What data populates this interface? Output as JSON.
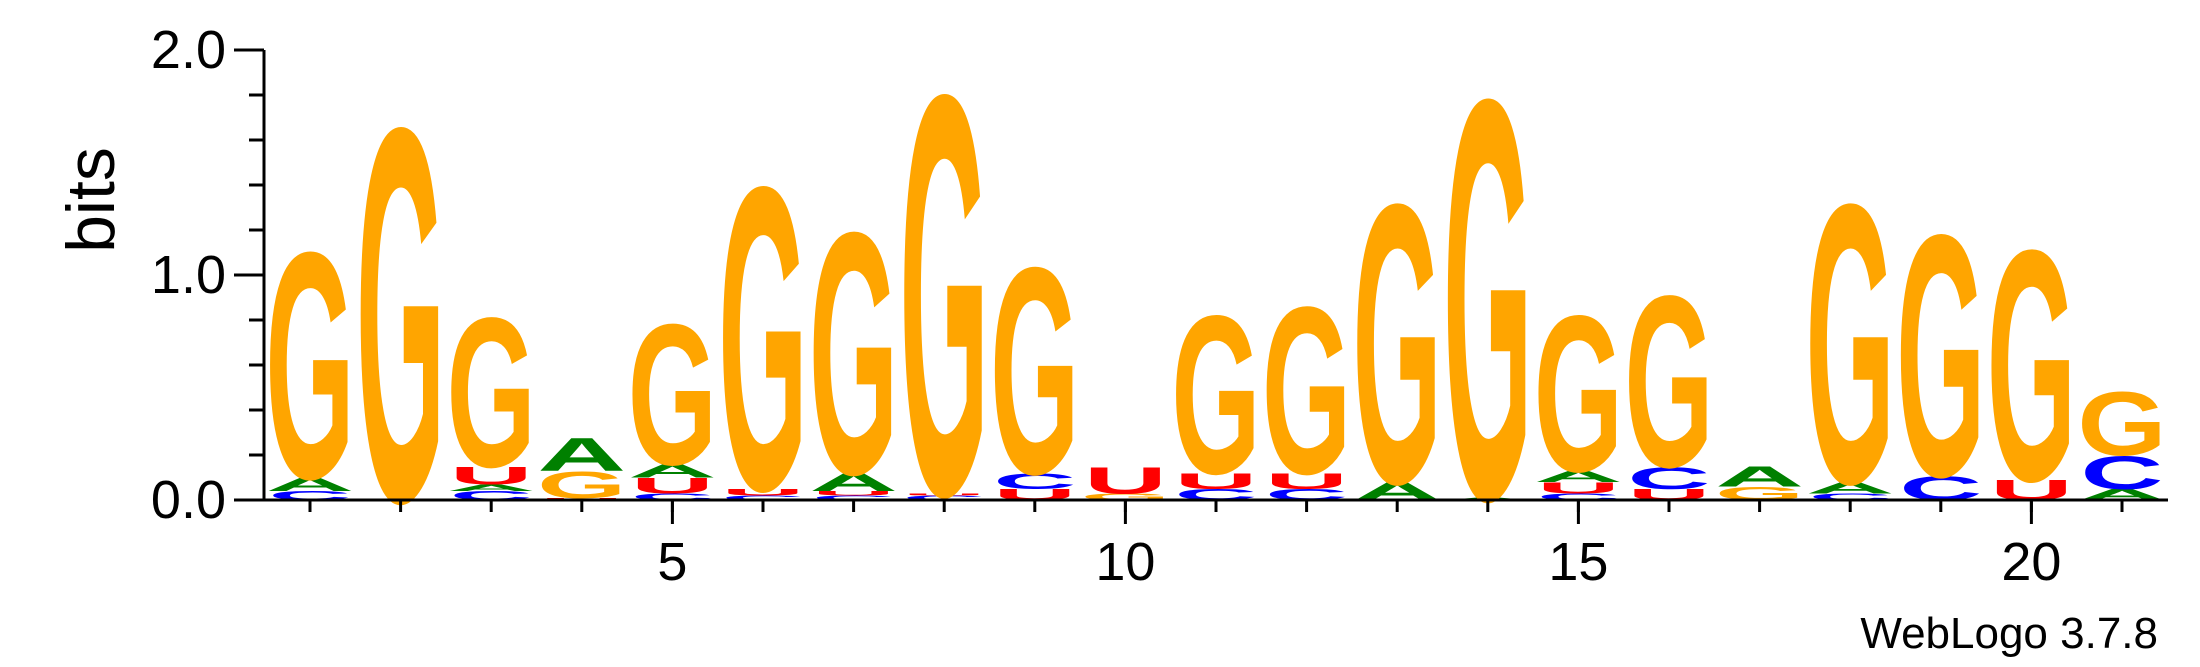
{
  "chart_data": {
    "type": "sequence-logo",
    "ylabel": "bits",
    "ylim": [
      0,
      2
    ],
    "y_ticks": [
      {
        "value": 0,
        "label": "0.0"
      },
      {
        "value": 1,
        "label": "1.0"
      },
      {
        "value": 2,
        "label": "2.0"
      }
    ],
    "x_range": [
      1,
      21
    ],
    "x_ticks": [
      {
        "value": 5,
        "label": "5"
      },
      {
        "value": 10,
        "label": "10"
      },
      {
        "value": 15,
        "label": "15"
      },
      {
        "value": 20,
        "label": "20"
      }
    ],
    "credit": "WebLogo 3.7.8",
    "colors": {
      "G": "#FFA500",
      "A": "#008000",
      "C": "#0000FF",
      "U": "#FF0000"
    },
    "positions": [
      {
        "pos": 1,
        "stack": [
          [
            "C",
            0.04
          ],
          [
            "A",
            0.06
          ],
          [
            "G",
            1.03
          ]
        ]
      },
      {
        "pos": 2,
        "stack": [
          [
            "G",
            1.7
          ]
        ]
      },
      {
        "pos": 3,
        "stack": [
          [
            "C",
            0.04
          ],
          [
            "A",
            0.03
          ],
          [
            "U",
            0.08
          ],
          [
            "G",
            0.68
          ]
        ]
      },
      {
        "pos": 4,
        "stack": [
          [
            "U",
            0.01
          ],
          [
            "G",
            0.12
          ],
          [
            "A",
            0.15
          ]
        ]
      },
      {
        "pos": 5,
        "stack": [
          [
            "C",
            0.03
          ],
          [
            "U",
            0.07
          ],
          [
            "A",
            0.06
          ],
          [
            "G",
            0.64
          ]
        ]
      },
      {
        "pos": 6,
        "stack": [
          [
            "C",
            0.02
          ],
          [
            "U",
            0.03
          ],
          [
            "G",
            1.38
          ]
        ]
      },
      {
        "pos": 7,
        "stack": [
          [
            "C",
            0.02
          ],
          [
            "U",
            0.02
          ],
          [
            "A",
            0.08
          ],
          [
            "G",
            1.1
          ]
        ]
      },
      {
        "pos": 8,
        "stack": [
          [
            "C",
            0.02
          ],
          [
            "U",
            0.01
          ],
          [
            "G",
            1.82
          ]
        ]
      },
      {
        "pos": 9,
        "stack": [
          [
            "U",
            0.05
          ],
          [
            "C",
            0.07
          ],
          [
            "G",
            0.94
          ]
        ]
      },
      {
        "pos": 10,
        "stack": [
          [
            "G",
            0.03
          ],
          [
            "U",
            0.12
          ]
        ]
      },
      {
        "pos": 11,
        "stack": [
          [
            "C",
            0.05
          ],
          [
            "U",
            0.07
          ],
          [
            "G",
            0.72
          ]
        ]
      },
      {
        "pos": 12,
        "stack": [
          [
            "C",
            0.05
          ],
          [
            "U",
            0.07
          ],
          [
            "G",
            0.76
          ]
        ]
      },
      {
        "pos": 13,
        "stack": [
          [
            "A",
            0.08
          ],
          [
            "G",
            1.27
          ]
        ]
      },
      {
        "pos": 14,
        "stack": [
          [
            "A",
            0.01
          ],
          [
            "G",
            1.82
          ]
        ]
      },
      {
        "pos": 15,
        "stack": [
          [
            "C",
            0.03
          ],
          [
            "U",
            0.05
          ],
          [
            "A",
            0.05
          ],
          [
            "G",
            0.71
          ]
        ]
      },
      {
        "pos": 16,
        "stack": [
          [
            "U",
            0.05
          ],
          [
            "C",
            0.1
          ],
          [
            "G",
            0.78
          ]
        ]
      },
      {
        "pos": 17,
        "stack": [
          [
            "G",
            0.06
          ],
          [
            "A",
            0.09
          ]
        ]
      },
      {
        "pos": 18,
        "stack": [
          [
            "C",
            0.03
          ],
          [
            "A",
            0.05
          ],
          [
            "G",
            1.27
          ]
        ]
      },
      {
        "pos": 19,
        "stack": [
          [
            "C",
            0.11
          ],
          [
            "G",
            1.1
          ]
        ]
      },
      {
        "pos": 20,
        "stack": [
          [
            "U",
            0.09
          ],
          [
            "G",
            1.05
          ]
        ]
      },
      {
        "pos": 21,
        "stack": [
          [
            "A",
            0.05
          ],
          [
            "C",
            0.15
          ],
          [
            "G",
            0.29
          ]
        ]
      }
    ]
  }
}
